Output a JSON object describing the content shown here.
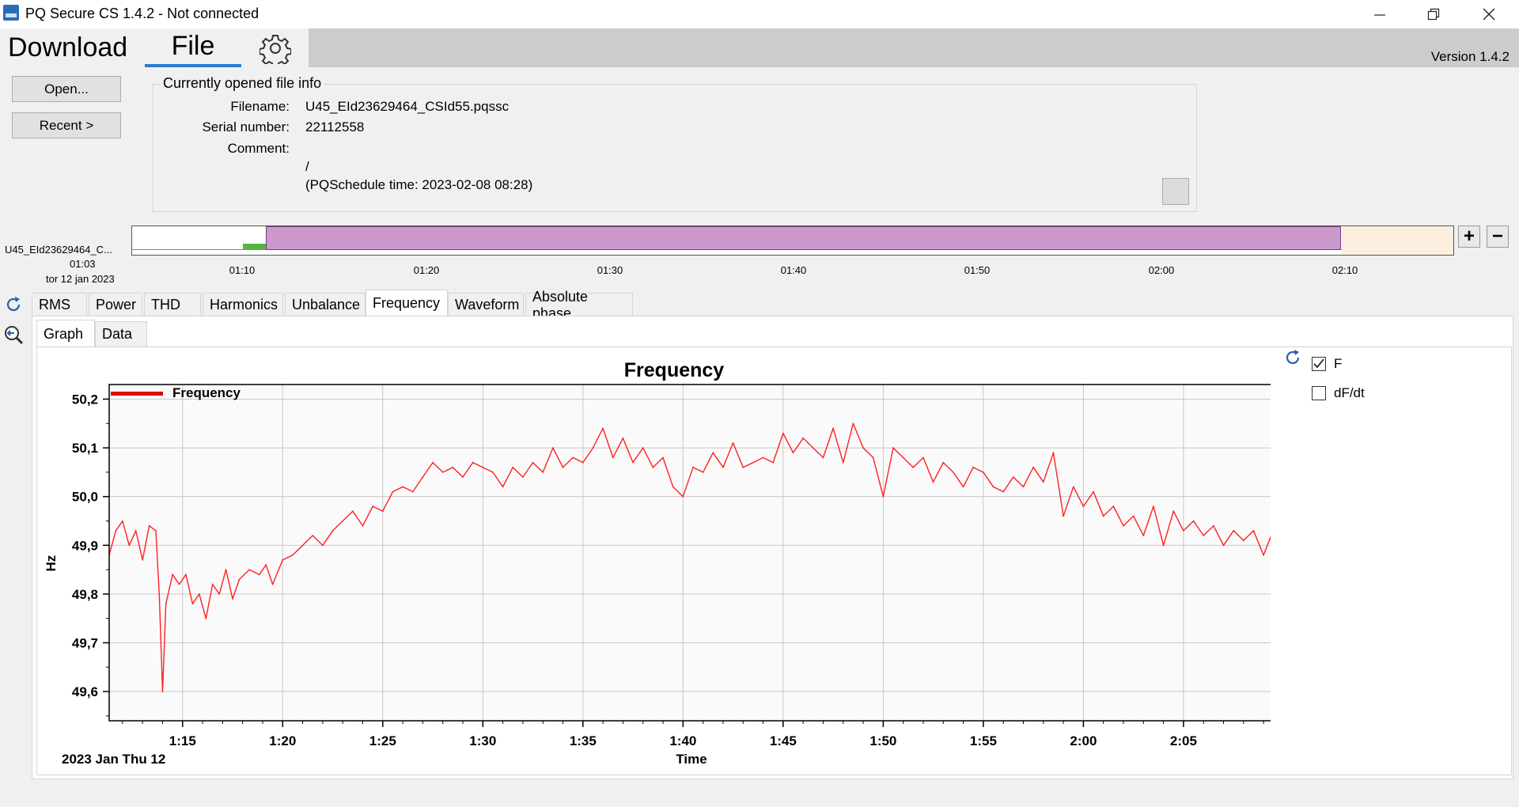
{
  "window": {
    "title": "PQ Secure CS 1.4.2 - Not connected",
    "minimize_icon": "minimize-icon",
    "restore_icon": "restore-icon",
    "close_icon": "close-icon"
  },
  "ribbon": {
    "tab_download": "Download",
    "tab_file": "File",
    "settings_icon": "gear-icon",
    "version": "Version 1.4.2"
  },
  "file_buttons": {
    "open": "Open...",
    "recent": "Recent >"
  },
  "file_info": {
    "title": "Currently opened file info",
    "filename_label": "Filename:",
    "filename": "U45_EId23629464_CSId55.pqssc",
    "serial_label": "Serial number:",
    "serial": "22112558",
    "comment_label": "Comment:",
    "comment": "/",
    "schedule": "(PQSchedule time: 2023-02-08 08:28)"
  },
  "timeline": {
    "file": "U45_EId23629464_C...",
    "start_time": "01:03",
    "start_date": "tor 12 jan 2023",
    "ticks": [
      "01:10",
      "01:20",
      "01:30",
      "01:40",
      "01:50",
      "02:00",
      "02:10"
    ],
    "zoom_in": "+",
    "zoom_out": "−",
    "selection_color": "#cc99cc",
    "data_color": "#55b540",
    "end_color": "#fdefe0"
  },
  "tabs": [
    "RMS",
    "Power",
    "THD",
    "Harmonics",
    "Unbalance",
    "Frequency",
    "Waveform",
    "Absolute phase"
  ],
  "active_tab": "Frequency",
  "subtabs": [
    "Graph",
    "Data"
  ],
  "active_subtab": "Graph",
  "side_icons": [
    "refresh-icon",
    "zoom-back-icon"
  ],
  "series_panel": {
    "refresh_icon": "refresh-icon",
    "items": [
      {
        "label": "F",
        "checked": true
      },
      {
        "label": "dF/dt",
        "checked": false
      }
    ]
  },
  "chart_data": {
    "type": "line",
    "title": "Frequency",
    "xlabel": "Time",
    "ylabel": "Hz",
    "date_label": "2023 Jan Thu 12",
    "legend": "Frequency",
    "legend_position": "top-left",
    "grid": true,
    "line_color": "#ff2020",
    "ylim": [
      49.54,
      50.23
    ],
    "xlim": [
      "01:11:20",
      "02:09:40"
    ],
    "xticks": [
      "1:15",
      "1:20",
      "1:25",
      "1:30",
      "1:35",
      "1:40",
      "1:45",
      "1:50",
      "1:55",
      "2:00",
      "2:05"
    ],
    "yticks": [
      "49,6",
      "49,7",
      "49,8",
      "49,9",
      "50,0",
      "50,1",
      "50,2"
    ],
    "series": [
      {
        "name": "Frequency",
        "points": [
          [
            "01:11:20",
            49.88
          ],
          [
            "01:11:40",
            49.93
          ],
          [
            "01:12:00",
            49.95
          ],
          [
            "01:12:20",
            49.9
          ],
          [
            "01:12:40",
            49.93
          ],
          [
            "01:13:00",
            49.87
          ],
          [
            "01:13:20",
            49.94
          ],
          [
            "01:13:40",
            49.93
          ],
          [
            "01:13:50",
            49.8
          ],
          [
            "01:14:00",
            49.6
          ],
          [
            "01:14:10",
            49.78
          ],
          [
            "01:14:30",
            49.84
          ],
          [
            "01:14:50",
            49.82
          ],
          [
            "01:15:10",
            49.84
          ],
          [
            "01:15:30",
            49.78
          ],
          [
            "01:15:50",
            49.8
          ],
          [
            "01:16:10",
            49.75
          ],
          [
            "01:16:30",
            49.82
          ],
          [
            "01:16:50",
            49.8
          ],
          [
            "01:17:10",
            49.85
          ],
          [
            "01:17:30",
            49.79
          ],
          [
            "01:17:50",
            49.83
          ],
          [
            "01:18:20",
            49.85
          ],
          [
            "01:18:50",
            49.84
          ],
          [
            "01:19:10",
            49.86
          ],
          [
            "01:19:30",
            49.82
          ],
          [
            "01:20:00",
            49.87
          ],
          [
            "01:20:30",
            49.88
          ],
          [
            "01:21:00",
            49.9
          ],
          [
            "01:21:30",
            49.92
          ],
          [
            "01:22:00",
            49.9
          ],
          [
            "01:22:30",
            49.93
          ],
          [
            "01:23:00",
            49.95
          ],
          [
            "01:23:30",
            49.97
          ],
          [
            "01:24:00",
            49.94
          ],
          [
            "01:24:30",
            49.98
          ],
          [
            "01:25:00",
            49.97
          ],
          [
            "01:25:30",
            50.01
          ],
          [
            "01:26:00",
            50.02
          ],
          [
            "01:26:30",
            50.01
          ],
          [
            "01:27:00",
            50.04
          ],
          [
            "01:27:30",
            50.07
          ],
          [
            "01:28:00",
            50.05
          ],
          [
            "01:28:30",
            50.06
          ],
          [
            "01:29:00",
            50.04
          ],
          [
            "01:29:30",
            50.07
          ],
          [
            "01:30:00",
            50.06
          ],
          [
            "01:30:30",
            50.05
          ],
          [
            "01:31:00",
            50.02
          ],
          [
            "01:31:30",
            50.06
          ],
          [
            "01:32:00",
            50.04
          ],
          [
            "01:32:30",
            50.07
          ],
          [
            "01:33:00",
            50.05
          ],
          [
            "01:33:30",
            50.1
          ],
          [
            "01:34:00",
            50.06
          ],
          [
            "01:34:30",
            50.08
          ],
          [
            "01:35:00",
            50.07
          ],
          [
            "01:35:30",
            50.1
          ],
          [
            "01:36:00",
            50.14
          ],
          [
            "01:36:30",
            50.08
          ],
          [
            "01:37:00",
            50.12
          ],
          [
            "01:37:30",
            50.07
          ],
          [
            "01:38:00",
            50.1
          ],
          [
            "01:38:30",
            50.06
          ],
          [
            "01:39:00",
            50.08
          ],
          [
            "01:39:30",
            50.02
          ],
          [
            "01:40:00",
            50.0
          ],
          [
            "01:40:30",
            50.06
          ],
          [
            "01:41:00",
            50.05
          ],
          [
            "01:41:30",
            50.09
          ],
          [
            "01:42:00",
            50.06
          ],
          [
            "01:42:30",
            50.11
          ],
          [
            "01:43:00",
            50.06
          ],
          [
            "01:43:30",
            50.07
          ],
          [
            "01:44:00",
            50.08
          ],
          [
            "01:44:30",
            50.07
          ],
          [
            "01:45:00",
            50.13
          ],
          [
            "01:45:30",
            50.09
          ],
          [
            "01:46:00",
            50.12
          ],
          [
            "01:46:30",
            50.1
          ],
          [
            "01:47:00",
            50.08
          ],
          [
            "01:47:30",
            50.14
          ],
          [
            "01:48:00",
            50.07
          ],
          [
            "01:48:30",
            50.15
          ],
          [
            "01:49:00",
            50.1
          ],
          [
            "01:49:30",
            50.08
          ],
          [
            "01:50:00",
            50.0
          ],
          [
            "01:50:30",
            50.1
          ],
          [
            "01:51:00",
            50.08
          ],
          [
            "01:51:30",
            50.06
          ],
          [
            "01:52:00",
            50.08
          ],
          [
            "01:52:30",
            50.03
          ],
          [
            "01:53:00",
            50.07
          ],
          [
            "01:53:30",
            50.05
          ],
          [
            "01:54:00",
            50.02
          ],
          [
            "01:54:30",
            50.06
          ],
          [
            "01:55:00",
            50.05
          ],
          [
            "01:55:30",
            50.02
          ],
          [
            "01:56:00",
            50.01
          ],
          [
            "01:56:30",
            50.04
          ],
          [
            "01:57:00",
            50.02
          ],
          [
            "01:57:30",
            50.06
          ],
          [
            "01:58:00",
            50.03
          ],
          [
            "01:58:30",
            50.09
          ],
          [
            "01:59:00",
            49.96
          ],
          [
            "01:59:30",
            50.02
          ],
          [
            "02:00:00",
            49.98
          ],
          [
            "02:00:30",
            50.01
          ],
          [
            "02:01:00",
            49.96
          ],
          [
            "02:01:30",
            49.98
          ],
          [
            "02:02:00",
            49.94
          ],
          [
            "02:02:30",
            49.96
          ],
          [
            "02:03:00",
            49.92
          ],
          [
            "02:03:30",
            49.98
          ],
          [
            "02:04:00",
            49.9
          ],
          [
            "02:04:30",
            49.97
          ],
          [
            "02:05:00",
            49.93
          ],
          [
            "02:05:30",
            49.95
          ],
          [
            "02:06:00",
            49.92
          ],
          [
            "02:06:30",
            49.94
          ],
          [
            "02:07:00",
            49.9
          ],
          [
            "02:07:30",
            49.93
          ],
          [
            "02:08:00",
            49.91
          ],
          [
            "02:08:30",
            49.93
          ],
          [
            "02:09:00",
            49.88
          ],
          [
            "02:09:40",
            49.95
          ]
        ]
      }
    ]
  }
}
